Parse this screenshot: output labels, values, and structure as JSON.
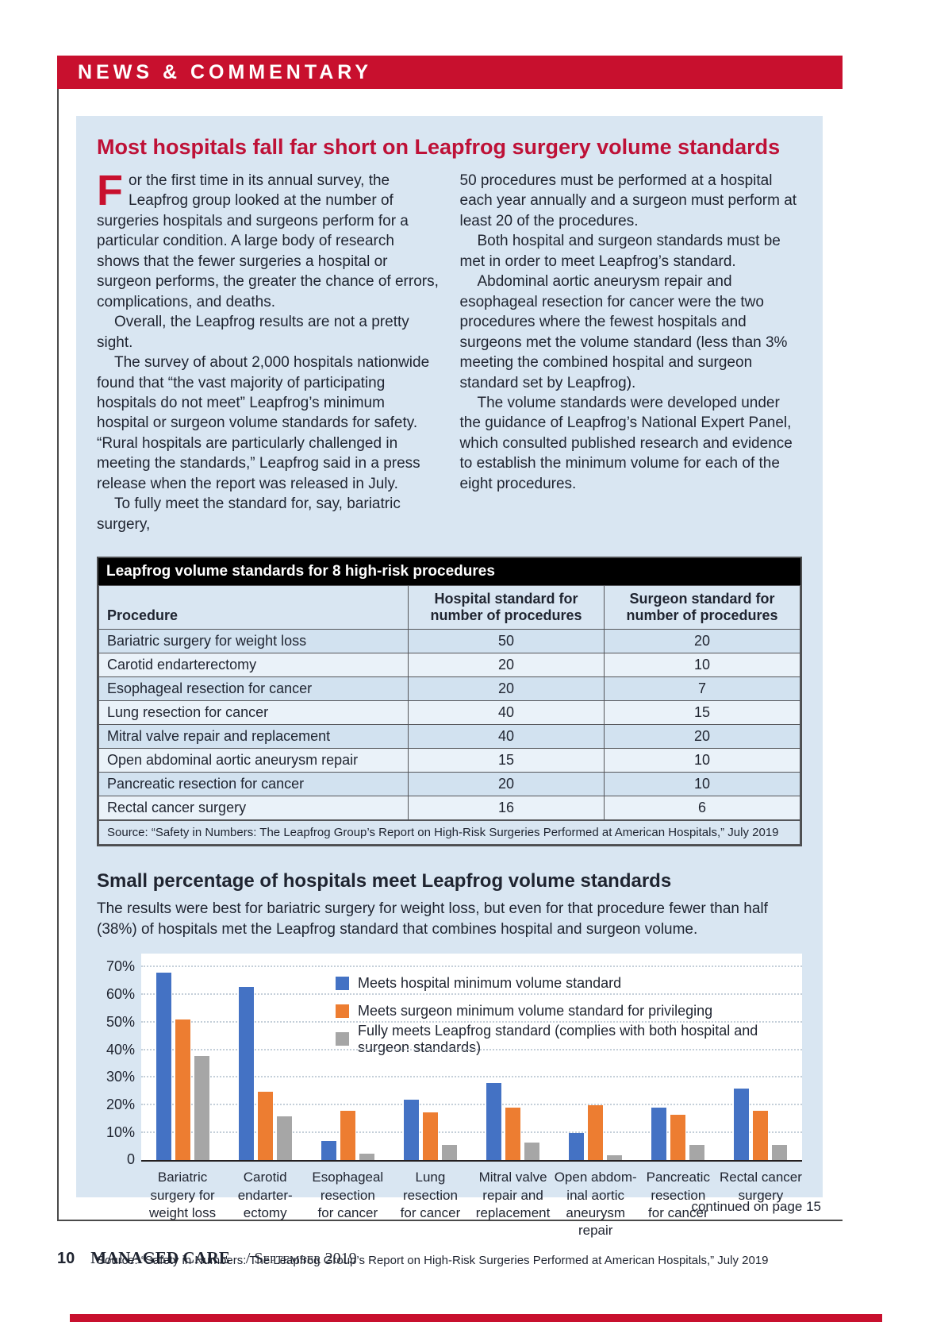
{
  "banner": {
    "title": "NEWS & COMMENTARY"
  },
  "article": {
    "title": "Most hospitals fall far short on Leapfrog surgery volume standards",
    "dropcap": "F",
    "col1": [
      "or the first time in its annual survey, the Leapfrog group looked at the number of surgeries hospitals and surgeons perform for a particular condition. A large body of research shows that the fewer surgeries a hospital or surgeon performs, the greater the chance of errors, complications, and deaths.",
      "Overall, the Leapfrog results are not a pretty sight.",
      "The survey of about 2,000 hospitals nationwide found that “the vast majority of participating hospitals do not meet” Leapfrog’s minimum hospital or surgeon volume standards for safety. “Rural hospitals are particularly challenged in meeting the standards,” Leapfrog said in a press release when the report was released in July.",
      "To fully meet the standard for, say, bariatric surgery,"
    ],
    "col2": [
      "50 procedures must be performed at a hospital each year annually and a surgeon must perform at least 20 of the procedures.",
      "Both hospital and surgeon standards must be met in order to meet Leapfrog’s standard.",
      "Abdominal aortic aneurysm repair and esophageal resection for cancer were the two procedures where the fewest hospitals and surgeons met the volume standard (less than 3% meeting the combined hospital and surgeon standard set by Leapfrog).",
      "The volume standards were developed under the guidance of Leapfrog’s National Expert Panel, which consulted published research and evidence to establish the minimum volume for each of the eight procedures."
    ]
  },
  "table": {
    "title": "Leapfrog volume standards for 8 high-risk procedures",
    "columns": [
      "Procedure",
      "Hospital standard for\nnumber of procedures",
      "Surgeon standard for\nnumber of procedures"
    ],
    "rows": [
      [
        "Bariatric surgery for weight loss",
        "50",
        "20"
      ],
      [
        "Carotid endarterectomy",
        "20",
        "10"
      ],
      [
        "Esophageal resection for cancer",
        "20",
        "7"
      ],
      [
        "Lung resection for cancer",
        "40",
        "15"
      ],
      [
        "Mitral valve repair and replacement",
        "40",
        "20"
      ],
      [
        "Open abdominal aortic aneurysm repair",
        "15",
        "10"
      ],
      [
        "Pancreatic resection for cancer",
        "20",
        "10"
      ],
      [
        "Rectal cancer surgery",
        "16",
        "6"
      ]
    ],
    "source": "Source: “Safety in Numbers: The Leapfrog Group’s Report on High-Risk Surgeries Performed at American Hospitals,” July 2019"
  },
  "chart_data": {
    "type": "bar",
    "title": "Small percentage of hospitals meet Leapfrog volume standards",
    "subtitle": "The results were best for bariatric surgery for weight loss, but even for that procedure fewer than half (38%) of hospitals met the Leapfrog standard that combines hospital and surgeon volume.",
    "categories": [
      [
        "Bariatric",
        "surgery for",
        "weight loss"
      ],
      [
        "Carotid",
        "endarter-",
        "ectomy"
      ],
      [
        "Esophageal",
        "resection",
        "for cancer"
      ],
      [
        "Lung",
        "resection",
        "for cancer"
      ],
      [
        "Mitral valve",
        "repair and",
        "replacement"
      ],
      [
        "Open abdom-",
        "inal aortic",
        "aneurysm",
        "repair"
      ],
      [
        "Pancreatic",
        "resection",
        "for cancer"
      ],
      [
        "Rectal cancer",
        "surgery"
      ]
    ],
    "series": [
      {
        "name": "Meets hospital minimum volume standard",
        "color": "#4472C4",
        "values": [
          68,
          63,
          7,
          22,
          28,
          10,
          19,
          26
        ]
      },
      {
        "name": "Meets surgeon minimum volume standard for privileging",
        "color": "#ED7D31",
        "values": [
          51,
          25,
          18,
          17.5,
          19,
          20,
          16.5,
          18
        ]
      },
      {
        "name": "Fully meets Leapfrog standard (complies with both hospital and surgeon standards)",
        "color": "#A6A6A6",
        "values": [
          38,
          16,
          2.5,
          5.5,
          6.5,
          2,
          5.5,
          5.5
        ]
      }
    ],
    "xlabel": "",
    "ylabel": "",
    "ylim": [
      0,
      70
    ],
    "yticks": [
      0,
      10,
      20,
      30,
      40,
      50,
      60,
      70
    ],
    "ytick_format": "percent, 0 shown without % sign",
    "grid": "horizontal dotted",
    "legend_position": "inside plot, upper area",
    "source": "Source: “Safety in Numbers: The Leapfrog Group’s Report on High-Risk Surgeries Performed at American Hospitals,” July 2019"
  },
  "footer": {
    "continued": "continued on page 15",
    "page_number": "10",
    "magazine": "MANAGED CARE",
    "issue": "/ September 2019"
  },
  "colors": {
    "banner_red": "#C8102E",
    "title_red": "#BE1137",
    "panel_blue": "#D9E6F2",
    "bar_blue": "#4472C4",
    "bar_orange": "#ED7D31",
    "bar_gray": "#A6A6A6"
  }
}
